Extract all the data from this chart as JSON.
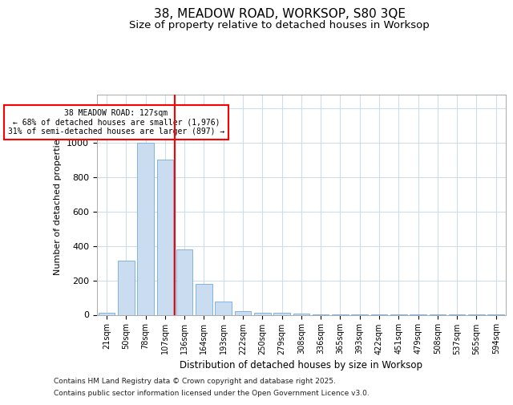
{
  "title_line1": "38, MEADOW ROAD, WORKSOP, S80 3QE",
  "title_line2": "Size of property relative to detached houses in Worksop",
  "xlabel": "Distribution of detached houses by size in Worksop",
  "ylabel": "Number of detached properties",
  "categories": [
    "21sqm",
    "50sqm",
    "78sqm",
    "107sqm",
    "136sqm",
    "164sqm",
    "193sqm",
    "222sqm",
    "250sqm",
    "279sqm",
    "308sqm",
    "336sqm",
    "365sqm",
    "393sqm",
    "422sqm",
    "451sqm",
    "479sqm",
    "508sqm",
    "537sqm",
    "565sqm",
    "594sqm"
  ],
  "values": [
    10,
    315,
    1000,
    900,
    380,
    180,
    75,
    22,
    10,
    10,
    5,
    2,
    2,
    2,
    2,
    2,
    2,
    2,
    2,
    2,
    2
  ],
  "bar_color": "#c9dcf0",
  "bar_edgecolor": "#7fb4e0",
  "redline_index": 3.5,
  "annotation_line1": "38 MEADOW ROAD: 127sqm",
  "annotation_line2": "← 68% of detached houses are smaller (1,976)",
  "annotation_line3": "31% of semi-detached houses are larger (897) →",
  "ylim": [
    0,
    1280
  ],
  "yticks": [
    0,
    200,
    400,
    600,
    800,
    1000,
    1200
  ],
  "background_color": "#ffffff",
  "plot_bg_color": "#ffffff",
  "grid_color": "#d0dcea",
  "footer_line1": "Contains HM Land Registry data © Crown copyright and database right 2025.",
  "footer_line2": "Contains public sector information licensed under the Open Government Licence v3.0."
}
